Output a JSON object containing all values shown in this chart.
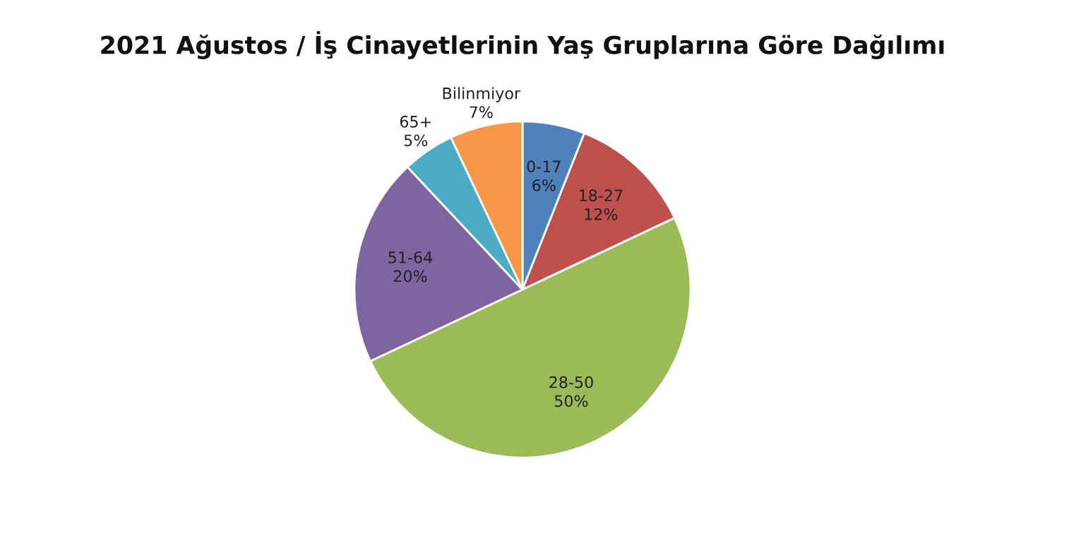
{
  "chart_data": {
    "type": "pie",
    "title": "2021 Ağustos / İş Cinayetlerinin Yaş Gruplarına Göre Dağılımı",
    "categories": [
      "0-17",
      "18-27",
      "28-50",
      "51-64",
      "65+",
      "Bilinmiyor"
    ],
    "values": [
      6,
      12,
      50,
      20,
      5,
      7
    ],
    "value_labels": [
      "6%",
      "12%",
      "50%",
      "20%",
      "5%",
      "7%"
    ],
    "colors": [
      "#4f81bd",
      "#c0504d",
      "#9bbb59",
      "#8064a2",
      "#4bacc6",
      "#f79646"
    ]
  }
}
